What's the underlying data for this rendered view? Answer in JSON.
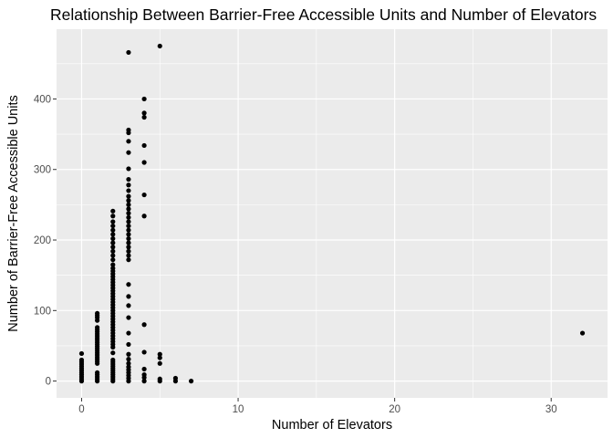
{
  "chart_data": {
    "type": "scatter",
    "title": "Relationship Between Barrier-Free Accessible Units and Number of Elevators",
    "xlabel": "Number of Elevators",
    "ylabel": "Number of Barrier-Free Accessible Units",
    "xlim": [
      -1.6,
      33.6
    ],
    "ylim": [
      -23.8,
      498.9
    ],
    "x_ticks": [
      0,
      10,
      20,
      30
    ],
    "y_ticks": [
      0,
      100,
      200,
      300,
      400
    ],
    "x_tick_labels": [
      "0",
      "10",
      "20",
      "30"
    ],
    "y_tick_labels": [
      "0",
      "100",
      "200",
      "300",
      "400"
    ],
    "grid": true,
    "background": "#ebebeb",
    "grid_color": "#ffffff",
    "point_color": "#000000",
    "points": [
      {
        "x": 0,
        "y": 0
      },
      {
        "x": 0,
        "y": 3
      },
      {
        "x": 0,
        "y": 6
      },
      {
        "x": 0,
        "y": 9
      },
      {
        "x": 0,
        "y": 12
      },
      {
        "x": 0,
        "y": 15
      },
      {
        "x": 0,
        "y": 18
      },
      {
        "x": 0,
        "y": 21
      },
      {
        "x": 0,
        "y": 24
      },
      {
        "x": 0,
        "y": 27
      },
      {
        "x": 0,
        "y": 30
      },
      {
        "x": 0,
        "y": 39
      },
      {
        "x": 1,
        "y": 0
      },
      {
        "x": 1,
        "y": 3
      },
      {
        "x": 1,
        "y": 6
      },
      {
        "x": 1,
        "y": 9
      },
      {
        "x": 1,
        "y": 12
      },
      {
        "x": 1,
        "y": 25
      },
      {
        "x": 1,
        "y": 28
      },
      {
        "x": 1,
        "y": 31
      },
      {
        "x": 1,
        "y": 34
      },
      {
        "x": 1,
        "y": 37
      },
      {
        "x": 1,
        "y": 40
      },
      {
        "x": 1,
        "y": 43
      },
      {
        "x": 1,
        "y": 46
      },
      {
        "x": 1,
        "y": 49
      },
      {
        "x": 1,
        "y": 52
      },
      {
        "x": 1,
        "y": 55
      },
      {
        "x": 1,
        "y": 58
      },
      {
        "x": 1,
        "y": 61
      },
      {
        "x": 1,
        "y": 64
      },
      {
        "x": 1,
        "y": 67
      },
      {
        "x": 1,
        "y": 70
      },
      {
        "x": 1,
        "y": 73
      },
      {
        "x": 1,
        "y": 76
      },
      {
        "x": 1,
        "y": 86
      },
      {
        "x": 1,
        "y": 90
      },
      {
        "x": 1,
        "y": 93
      },
      {
        "x": 1,
        "y": 96
      },
      {
        "x": 2,
        "y": 0
      },
      {
        "x": 2,
        "y": 3
      },
      {
        "x": 2,
        "y": 6
      },
      {
        "x": 2,
        "y": 9
      },
      {
        "x": 2,
        "y": 12
      },
      {
        "x": 2,
        "y": 15
      },
      {
        "x": 2,
        "y": 18
      },
      {
        "x": 2,
        "y": 21
      },
      {
        "x": 2,
        "y": 24
      },
      {
        "x": 2,
        "y": 27
      },
      {
        "x": 2,
        "y": 30
      },
      {
        "x": 2,
        "y": 40
      },
      {
        "x": 2,
        "y": 48
      },
      {
        "x": 2,
        "y": 52
      },
      {
        "x": 2,
        "y": 56
      },
      {
        "x": 2,
        "y": 60
      },
      {
        "x": 2,
        "y": 64
      },
      {
        "x": 2,
        "y": 68
      },
      {
        "x": 2,
        "y": 72
      },
      {
        "x": 2,
        "y": 76
      },
      {
        "x": 2,
        "y": 80
      },
      {
        "x": 2,
        "y": 84
      },
      {
        "x": 2,
        "y": 88
      },
      {
        "x": 2,
        "y": 92
      },
      {
        "x": 2,
        "y": 96
      },
      {
        "x": 2,
        "y": 100
      },
      {
        "x": 2,
        "y": 104
      },
      {
        "x": 2,
        "y": 108
      },
      {
        "x": 2,
        "y": 112
      },
      {
        "x": 2,
        "y": 116
      },
      {
        "x": 2,
        "y": 120
      },
      {
        "x": 2,
        "y": 124
      },
      {
        "x": 2,
        "y": 128
      },
      {
        "x": 2,
        "y": 132
      },
      {
        "x": 2,
        "y": 136
      },
      {
        "x": 2,
        "y": 140
      },
      {
        "x": 2,
        "y": 144
      },
      {
        "x": 2,
        "y": 148
      },
      {
        "x": 2,
        "y": 152
      },
      {
        "x": 2,
        "y": 156
      },
      {
        "x": 2,
        "y": 160
      },
      {
        "x": 2,
        "y": 165
      },
      {
        "x": 2,
        "y": 172
      },
      {
        "x": 2,
        "y": 178
      },
      {
        "x": 2,
        "y": 184
      },
      {
        "x": 2,
        "y": 190
      },
      {
        "x": 2,
        "y": 196
      },
      {
        "x": 2,
        "y": 202
      },
      {
        "x": 2,
        "y": 208
      },
      {
        "x": 2,
        "y": 214
      },
      {
        "x": 2,
        "y": 220
      },
      {
        "x": 2,
        "y": 226
      },
      {
        "x": 2,
        "y": 234
      },
      {
        "x": 2,
        "y": 241
      },
      {
        "x": 3,
        "y": 0
      },
      {
        "x": 3,
        "y": 4
      },
      {
        "x": 3,
        "y": 8
      },
      {
        "x": 3,
        "y": 12
      },
      {
        "x": 3,
        "y": 16
      },
      {
        "x": 3,
        "y": 20
      },
      {
        "x": 3,
        "y": 25
      },
      {
        "x": 3,
        "y": 31
      },
      {
        "x": 3,
        "y": 38
      },
      {
        "x": 3,
        "y": 52
      },
      {
        "x": 3,
        "y": 68
      },
      {
        "x": 3,
        "y": 90
      },
      {
        "x": 3,
        "y": 107
      },
      {
        "x": 3,
        "y": 120
      },
      {
        "x": 3,
        "y": 137
      },
      {
        "x": 3,
        "y": 172
      },
      {
        "x": 3,
        "y": 178
      },
      {
        "x": 3,
        "y": 184
      },
      {
        "x": 3,
        "y": 190
      },
      {
        "x": 3,
        "y": 196
      },
      {
        "x": 3,
        "y": 202
      },
      {
        "x": 3,
        "y": 208
      },
      {
        "x": 3,
        "y": 214
      },
      {
        "x": 3,
        "y": 220
      },
      {
        "x": 3,
        "y": 226
      },
      {
        "x": 3,
        "y": 232
      },
      {
        "x": 3,
        "y": 238
      },
      {
        "x": 3,
        "y": 244
      },
      {
        "x": 3,
        "y": 250
      },
      {
        "x": 3,
        "y": 256
      },
      {
        "x": 3,
        "y": 262
      },
      {
        "x": 3,
        "y": 270
      },
      {
        "x": 3,
        "y": 278
      },
      {
        "x": 3,
        "y": 286
      },
      {
        "x": 3,
        "y": 301
      },
      {
        "x": 3,
        "y": 324
      },
      {
        "x": 3,
        "y": 340
      },
      {
        "x": 3,
        "y": 352
      },
      {
        "x": 3,
        "y": 356
      },
      {
        "x": 3,
        "y": 466
      },
      {
        "x": 4,
        "y": 0
      },
      {
        "x": 4,
        "y": 5
      },
      {
        "x": 4,
        "y": 9
      },
      {
        "x": 4,
        "y": 17
      },
      {
        "x": 4,
        "y": 41
      },
      {
        "x": 4,
        "y": 80
      },
      {
        "x": 4,
        "y": 234
      },
      {
        "x": 4,
        "y": 264
      },
      {
        "x": 4,
        "y": 310
      },
      {
        "x": 4,
        "y": 334
      },
      {
        "x": 4,
        "y": 374
      },
      {
        "x": 4,
        "y": 380
      },
      {
        "x": 4,
        "y": 400
      },
      {
        "x": 5,
        "y": 0
      },
      {
        "x": 5,
        "y": 3
      },
      {
        "x": 5,
        "y": 25
      },
      {
        "x": 5,
        "y": 33
      },
      {
        "x": 5,
        "y": 38
      },
      {
        "x": 5,
        "y": 475
      },
      {
        "x": 6,
        "y": 0
      },
      {
        "x": 6,
        "y": 4
      },
      {
        "x": 7,
        "y": 0
      },
      {
        "x": 32,
        "y": 68
      }
    ]
  }
}
